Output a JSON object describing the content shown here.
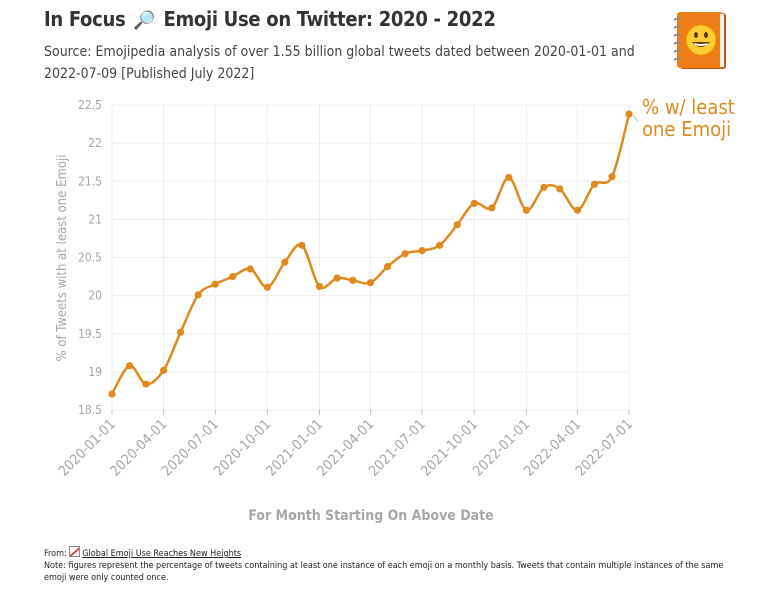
{
  "header": {
    "title_prefix": "In Focus",
    "title_main": "Emoji Use on Twitter: 2020 - 2022",
    "subtitle": "Source: Emojipedia analysis of over 1.55 billion global tweets dated between 2020-01-01 and 2022-07-09 [Published July 2022]",
    "title_icon": "magnifying-glass-icon",
    "logo_icon": "emojipedia-book-icon"
  },
  "chart_data": {
    "type": "line",
    "xlabel": "For Month Starting On Above Date",
    "ylabel": "% of Tweets with at least one Emoji",
    "ylim": [
      18.5,
      22.5
    ],
    "yticks": [
      18.5,
      19,
      19.5,
      20,
      20.5,
      21,
      21.5,
      22,
      22.5
    ],
    "xticks": [
      "2020-01-01",
      "2020-04-01",
      "2020-07-01",
      "2020-10-01",
      "2021-01-01",
      "2021-04-01",
      "2021-07-01",
      "2021-10-01",
      "2022-01-01",
      "2022-04-01",
      "2022-07-01"
    ],
    "grid": true,
    "x": [
      "2020-01-01",
      "2020-02-01",
      "2020-03-01",
      "2020-04-01",
      "2020-05-01",
      "2020-06-01",
      "2020-07-01",
      "2020-08-01",
      "2020-09-01",
      "2020-10-01",
      "2020-11-01",
      "2020-12-01",
      "2021-01-01",
      "2021-02-01",
      "2021-03-01",
      "2021-04-01",
      "2021-05-01",
      "2021-06-01",
      "2021-07-01",
      "2021-08-01",
      "2021-09-01",
      "2021-10-01",
      "2021-11-01",
      "2021-12-01",
      "2022-01-01",
      "2022-02-01",
      "2022-03-01",
      "2022-04-01",
      "2022-05-01",
      "2022-06-01",
      "2022-07-01"
    ],
    "series": [
      {
        "name": "% w/ least one Emoji",
        "color": "#e08a1e",
        "values": [
          18.71,
          19.08,
          18.84,
          19.02,
          19.52,
          20.01,
          20.15,
          20.25,
          20.35,
          20.11,
          20.44,
          20.66,
          20.12,
          20.23,
          20.2,
          20.17,
          20.38,
          20.55,
          20.59,
          20.66,
          20.93,
          21.21,
          21.15,
          21.55,
          21.12,
          21.42,
          21.4,
          21.12,
          21.46,
          21.56,
          22.38
        ]
      }
    ]
  },
  "footer": {
    "from_label": "From:",
    "link_text": "Global Emoji Use Reaches New Heights",
    "note": "Note: figures represent the percentage of tweets containing at least one instance of each emoji on a monthly basis. Tweets that contain multiple instances of the same emoji were only counted once."
  }
}
